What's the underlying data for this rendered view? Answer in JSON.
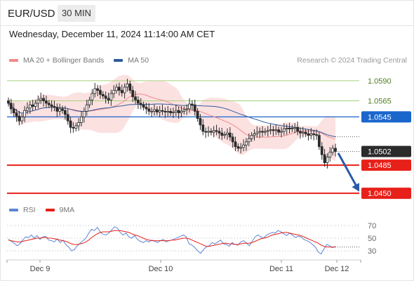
{
  "header": {
    "symbol": "EUR/USD",
    "timeframe": "30 MIN"
  },
  "datetime": "Wednesday, December 11, 2024 11:14:00 AM CET",
  "credit": "Research © 2024 Trading Central",
  "colors": {
    "ma20": "#f08a8a",
    "bollinger_fill": "#fcdcdc",
    "ma50": "#2f5c9e",
    "green_level": "#a7d17a",
    "blue_level": "#1a66cc",
    "red_level": "#e8201a",
    "candle": "#2b2b2b",
    "rsi": "#5b86d6",
    "rsi_ma": "#e8201a",
    "arrow": "#2d5aa6",
    "current_tag": "#2b2b2b"
  },
  "chart_data": [
    {
      "type": "candlestick",
      "title": "",
      "legend": [
        {
          "label": "MA 20 + Bollinger Bands",
          "color": "#f08a8a"
        },
        {
          "label": "MA 50",
          "color": "#2f5c9e"
        }
      ],
      "legend_position": "top-left",
      "x_tick_labels": [
        "Dec 9",
        "Dec 10",
        "Dec 11",
        "Dec 12"
      ],
      "ylim": [
        1.0444,
        1.0603
      ],
      "levels": [
        {
          "value": 1.059,
          "label": "1.0590",
          "kind": "resistance"
        },
        {
          "value": 1.0565,
          "label": "1.0565",
          "kind": "resistance"
        },
        {
          "value": 1.0545,
          "label": "1.0545",
          "kind": "pivot"
        },
        {
          "value": 1.0485,
          "label": "1.0485",
          "kind": "support"
        },
        {
          "value": 1.045,
          "label": "1.0450",
          "kind": "support"
        }
      ],
      "current_price": {
        "value": 1.0502,
        "label": "1.0502"
      },
      "forecast_arrow": {
        "from": 1.05,
        "to": 1.0452
      },
      "close_series": [
        1.0562,
        1.0555,
        1.055,
        1.0546,
        1.054,
        1.0545,
        1.0553,
        1.0556,
        1.056,
        1.0558,
        1.0562,
        1.0566,
        1.0568,
        1.0565,
        1.0562,
        1.056,
        1.0558,
        1.0557,
        1.0552,
        1.0555,
        1.0553,
        1.0548,
        1.054,
        1.0532,
        1.0531,
        1.0534,
        1.0538,
        1.0545,
        1.0552,
        1.056,
        1.0566,
        1.0574,
        1.058,
        1.0578,
        1.0573,
        1.0571,
        1.0568,
        1.0566,
        1.0574,
        1.0578,
        1.0582,
        1.0578,
        1.0575,
        1.0582,
        1.0586,
        1.0578,
        1.057,
        1.0566,
        1.0562,
        1.056,
        1.0557,
        1.0555,
        1.0552,
        1.0552,
        1.0554,
        1.0551,
        1.0553,
        1.0552,
        1.0551,
        1.0552,
        1.055,
        1.0551,
        1.0553,
        1.055,
        1.0552,
        1.0554,
        1.0555,
        1.0561,
        1.056,
        1.0552,
        1.0543,
        1.0535,
        1.0527,
        1.0526,
        1.0527,
        1.0526,
        1.0528,
        1.0527,
        1.0525,
        1.0522,
        1.0523,
        1.0525,
        1.052,
        1.0514,
        1.0508,
        1.0506,
        1.0507,
        1.051,
        1.0514,
        1.0518,
        1.0522,
        1.0524,
        1.0526,
        1.0527,
        1.0526,
        1.0527,
        1.0528,
        1.0529,
        1.0528,
        1.0529,
        1.0526,
        1.0527,
        1.053,
        1.0531,
        1.053,
        1.0531,
        1.0532,
        1.0527,
        1.0525,
        1.0526,
        1.0524,
        1.0522,
        1.0524,
        1.0523,
        1.0522,
        1.0508,
        1.0498,
        1.0488,
        1.0495,
        1.0501,
        1.0506,
        1.0502
      ]
    },
    {
      "type": "line",
      "title": "",
      "legend": [
        {
          "label": "RSI",
          "color": "#5b86d6"
        },
        {
          "label": "9MA",
          "color": "#e8201a"
        }
      ],
      "y_tick_labels": [
        "70",
        "50",
        "30"
      ],
      "ylim": [
        20,
        80
      ],
      "series": [
        {
          "name": "RSI",
          "values": [
            48,
            45,
            42,
            38,
            41,
            47,
            52,
            51,
            55,
            50,
            54,
            48,
            52,
            53,
            47,
            46,
            44,
            49,
            43,
            47,
            40,
            36,
            30,
            32,
            38,
            42,
            46,
            50,
            58,
            64,
            62,
            67,
            60,
            56,
            55,
            58,
            63,
            68,
            66,
            59,
            55,
            58,
            52,
            50,
            54,
            48,
            45,
            43,
            46,
            44,
            47,
            45,
            43,
            46,
            48,
            44,
            46,
            47,
            49,
            51,
            53,
            55,
            52,
            41,
            39,
            35,
            30,
            26,
            32,
            36,
            38,
            43,
            41,
            44,
            47,
            41,
            40,
            37,
            43,
            40,
            39,
            44,
            46,
            42,
            38,
            45,
            52,
            55,
            52,
            50,
            55,
            57,
            59,
            58,
            62,
            60,
            57,
            54,
            58,
            55,
            51,
            53,
            52,
            48,
            46,
            44,
            40,
            36,
            28,
            25,
            33,
            40,
            38,
            35,
            37
          ]
        },
        {
          "name": "9MA",
          "values": [
            47,
            46,
            45,
            44,
            44,
            45,
            46,
            47,
            48,
            49,
            50,
            50,
            51,
            51,
            50,
            50,
            49,
            48,
            47,
            46,
            45,
            43,
            41,
            40,
            40,
            41,
            42,
            44,
            47,
            51,
            54,
            57,
            59,
            60,
            60,
            60,
            61,
            62,
            62,
            62,
            61,
            60,
            59,
            57,
            55,
            54,
            52,
            50,
            48,
            47,
            46,
            46,
            46,
            46,
            46,
            46,
            46,
            47,
            47,
            48,
            49,
            50,
            50,
            49,
            47,
            45,
            43,
            41,
            39,
            37,
            37,
            38,
            39,
            40,
            41,
            42,
            42,
            41,
            41,
            40,
            40,
            41,
            42,
            42,
            42,
            43,
            45,
            47,
            49,
            50,
            51,
            53,
            55,
            56,
            57,
            58,
            59,
            59,
            58,
            57,
            56,
            55,
            54,
            52,
            50,
            48,
            46,
            44,
            42,
            39,
            37,
            36,
            36,
            36,
            36
          ]
        }
      ]
    }
  ]
}
